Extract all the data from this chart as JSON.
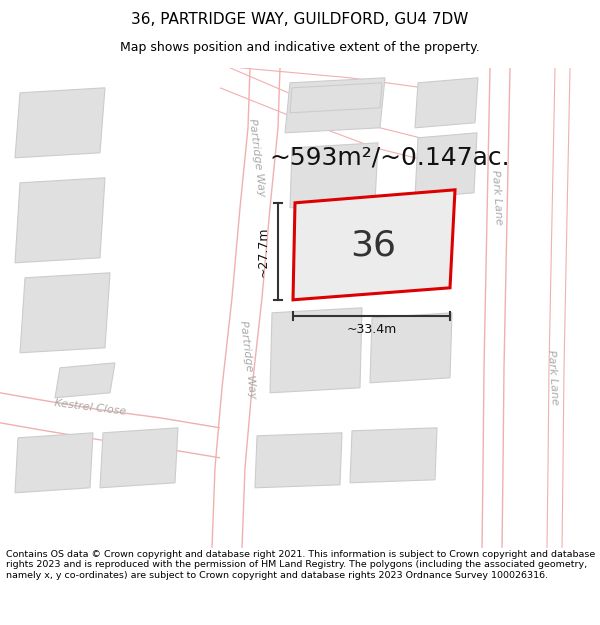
{
  "title": "36, PARTRIDGE WAY, GUILDFORD, GU4 7DW",
  "subtitle": "Map shows position and indicative extent of the property.",
  "footer": "Contains OS data © Crown copyright and database right 2021. This information is subject to Crown copyright and database rights 2023 and is reproduced with the permission of HM Land Registry. The polygons (including the associated geometry, namely x, y co-ordinates) are subject to Crown copyright and database rights 2023 Ordnance Survey 100026316.",
  "area_label": "~593m²/~0.147ac.",
  "number_label": "36",
  "width_label": "~33.4m",
  "height_label": "~27.7m",
  "bg_color": "#ffffff",
  "plot_fill": "#ececec",
  "plot_edge": "#dd0000",
  "plot_edge_width": 2.2,
  "building_fill": "#e0e0e0",
  "building_edge": "#cccccc",
  "road_line_color": "#f0b0b0",
  "dim_line_color": "#333333",
  "title_fontsize": 11,
  "subtitle_fontsize": 9,
  "footer_fontsize": 6.8,
  "area_fontsize": 18,
  "number_fontsize": 26,
  "dim_fontsize": 9,
  "street_fontsize": 8
}
